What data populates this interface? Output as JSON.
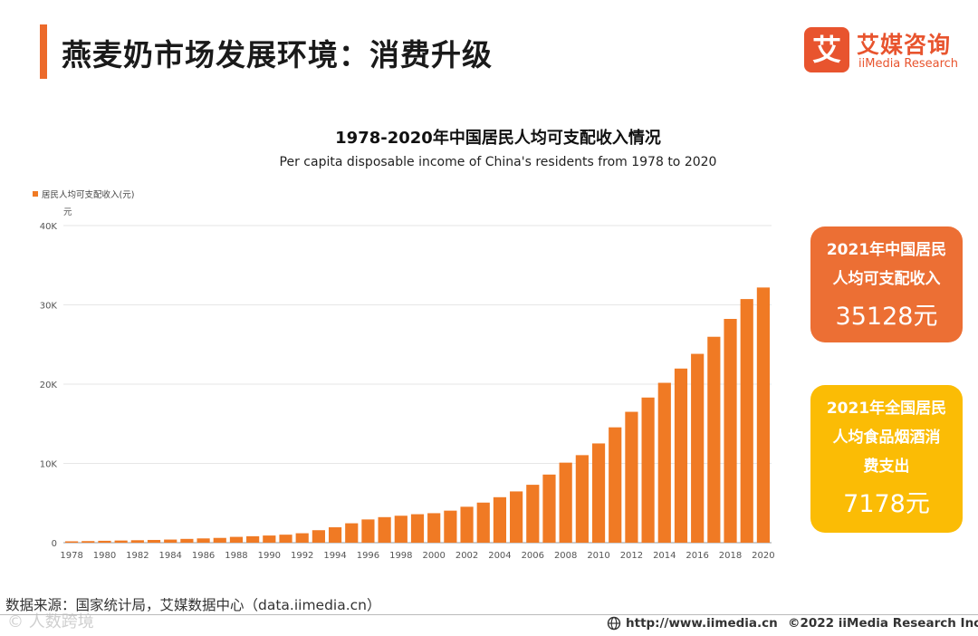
{
  "header": {
    "title": "燕麦奶市场发展环境：消费升级",
    "brand_logo_char": "艾",
    "brand_name_cn": "艾媒咨询",
    "brand_name_en": "iiMedia Research",
    "accent_color": "#ec6a2b"
  },
  "chart_data": {
    "type": "bar",
    "title": "1978-2020年中国居民人均可支配收入情况",
    "subtitle": "Per capita disposable income of  China's residents from 1978 to 2020",
    "series": [
      {
        "name": "居民人均可支配收入(元)",
        "color": "#f07a24",
        "values": [
          171,
          200,
          240,
          272,
          310,
          345,
          393,
          478,
          538,
          603,
          734,
          815,
          904,
          1011,
          1191,
          1574,
          1946,
          2447,
          2931,
          3223,
          3400,
          3591,
          3721,
          4041,
          4533,
          5056,
          5737,
          6466,
          7304,
          8593,
          10097,
          11043,
          12520,
          14551,
          16510,
          18311,
          20167,
          21966,
          23821,
          25974,
          28228,
          30733,
          32189
        ]
      }
    ],
    "categories": [
      "1978",
      "1979",
      "1980",
      "1981",
      "1982",
      "1983",
      "1984",
      "1985",
      "1986",
      "1987",
      "1988",
      "1989",
      "1990",
      "1991",
      "1992",
      "1993",
      "1994",
      "1995",
      "1996",
      "1997",
      "1998",
      "1999",
      "2000",
      "2001",
      "2002",
      "2003",
      "2004",
      "2005",
      "2006",
      "2007",
      "2008",
      "2009",
      "2010",
      "2011",
      "2012",
      "2013",
      "2014",
      "2015",
      "2016",
      "2017",
      "2018",
      "2019",
      "2020"
    ],
    "x_tick_labels": [
      "1978",
      "1980",
      "1982",
      "1984",
      "1986",
      "1988",
      "1990",
      "1992",
      "1994",
      "1996",
      "1998",
      "2000",
      "2002",
      "2004",
      "2006",
      "2008",
      "2010",
      "2012",
      "2014",
      "2016",
      "2018",
      "2020"
    ],
    "y_tick_labels": [
      "0",
      "10K",
      "20K",
      "30K",
      "40K"
    ],
    "y_ticks": [
      0,
      10000,
      20000,
      30000,
      40000
    ],
    "ylabel": "元",
    "xlabel": "",
    "ylim": [
      0,
      40000
    ],
    "grid": true,
    "legend_position": "top-left"
  },
  "callouts": [
    {
      "label": "2021年中国居民人均可支配收入",
      "value": "35128元",
      "color": "#ec6f34"
    },
    {
      "label": "2021年全国居民人均食品烟酒消费支出",
      "value": "7178元",
      "color": "#fbbc05"
    }
  ],
  "footer": {
    "source": "数据来源：国家统计局，艾媒数据中心（data.iimedia.cn）",
    "url": "http://www.iimedia.cn",
    "copyright": "©2022  iiMedia Research  Inc",
    "watermark": "© 人数跨境"
  }
}
